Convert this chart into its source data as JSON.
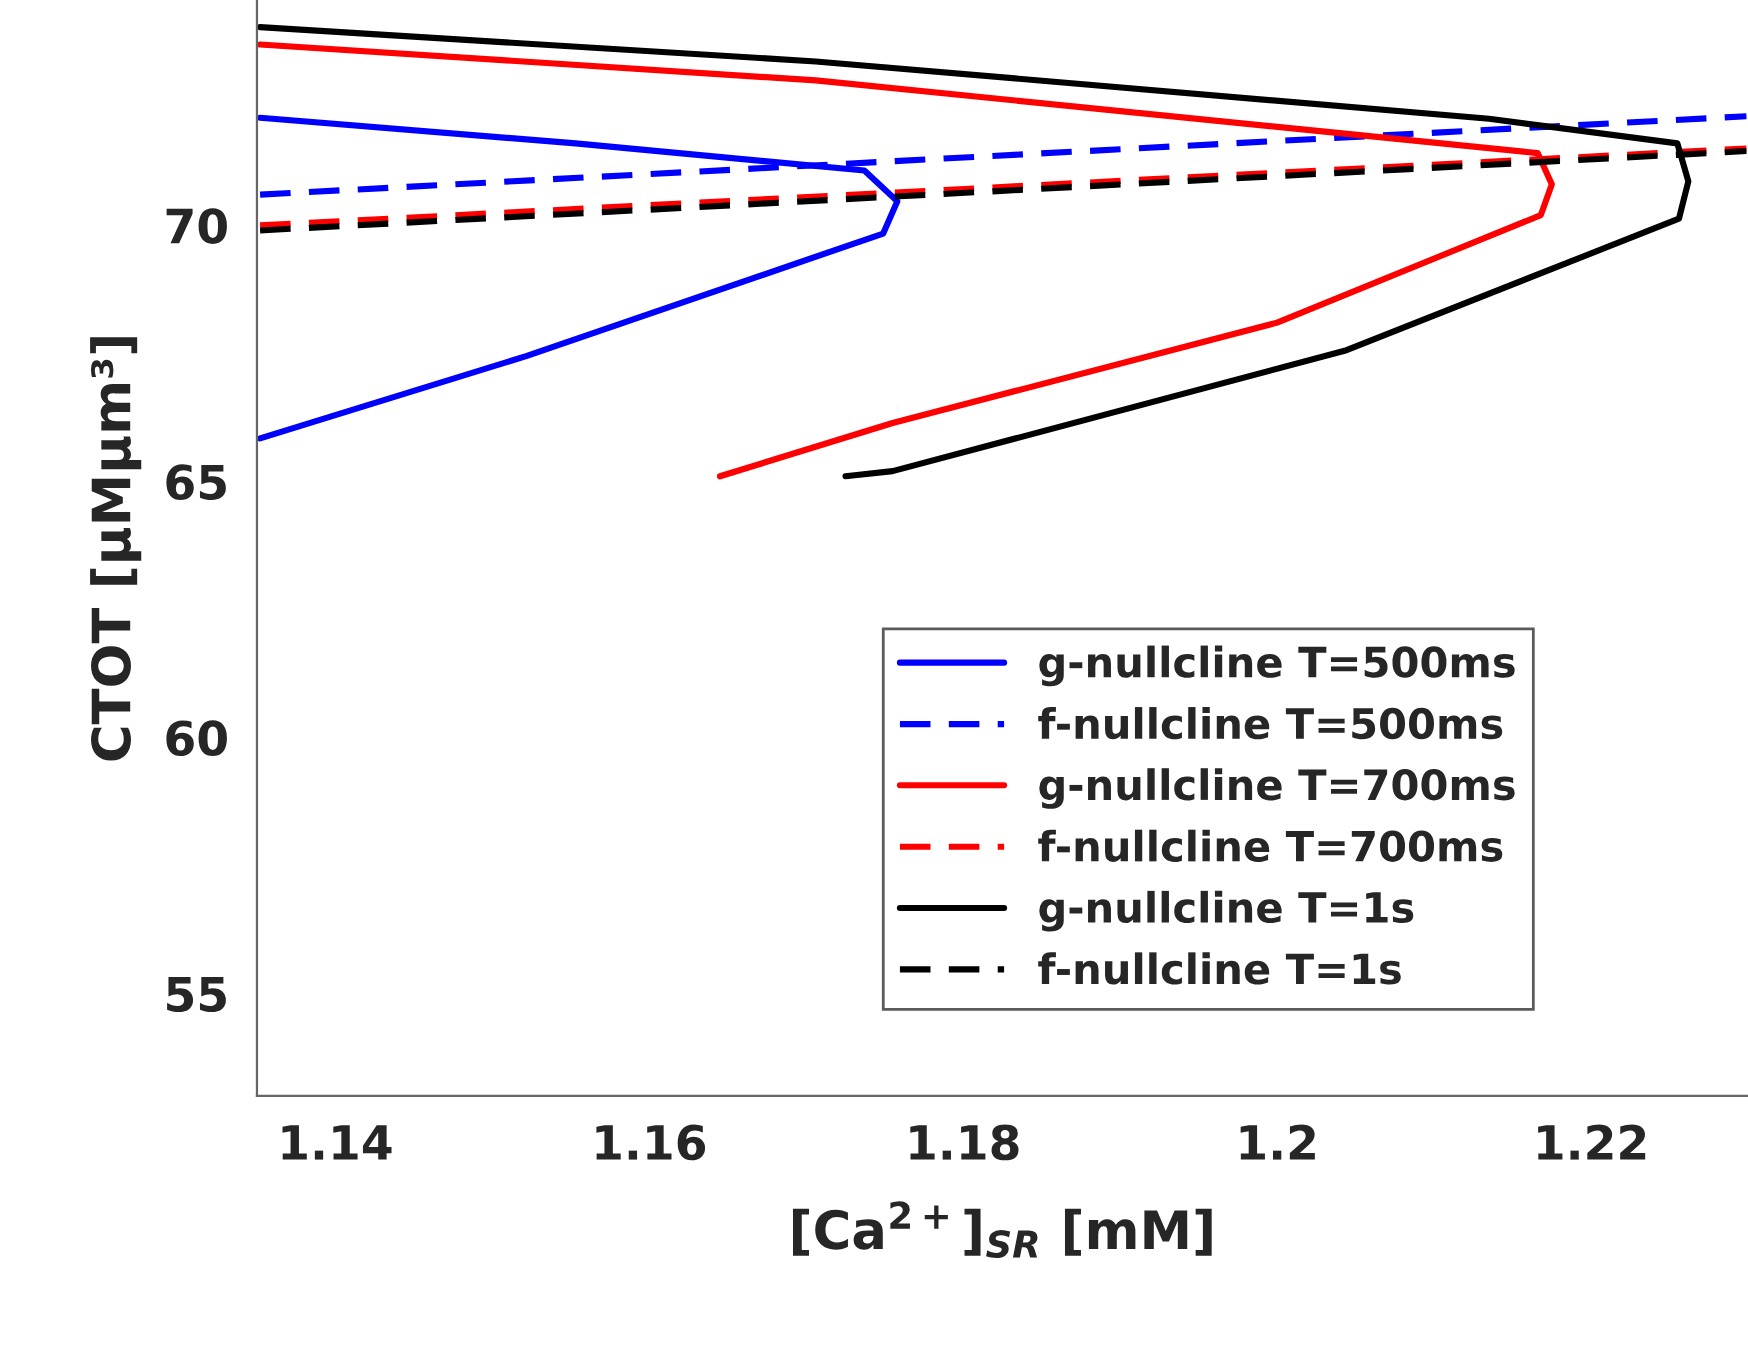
{
  "chart_data": {
    "type": "line",
    "xlabel": "[Ca$^{2+}$]$_{SR}$ [mM]",
    "ylabel": "CTOT [μMμm³]",
    "xlim": [
      1.135,
      1.23
    ],
    "ylim": [
      53,
      74.4
    ],
    "xticks": [
      1.14,
      1.16,
      1.18,
      {
        "value": 1.2,
        "label": "1.2"
      },
      1.22
    ],
    "yticks": [
      55,
      60,
      65,
      70
    ],
    "legend": "bottom right",
    "grid": false,
    "series": [
      {
        "name": "g-nullcline T=500ms",
        "color": "#0000ff",
        "line_style": "solid",
        "x": [
          1.1352,
          1.1553,
          1.1737,
          1.1758,
          1.1749,
          1.1522,
          1.1352
        ],
        "values": [
          72.1,
          71.6,
          71.07,
          70.47,
          69.84,
          67.45,
          65.84
        ]
      },
      {
        "name": "f-nullcline T=500ms",
        "color": "#0000ff",
        "line_style": "dashed",
        "x": [
          1.1352,
          1.2299
        ],
        "values": [
          70.6,
          72.13
        ]
      },
      {
        "name": "g-nullcline T=700ms",
        "color": "#ff0000",
        "line_style": "solid",
        "x": [
          1.1352,
          1.1706,
          1.2043,
          1.2166,
          1.2175,
          1.2168,
          1.2,
          1.1755,
          1.1645
        ],
        "values": [
          73.53,
          72.83,
          71.79,
          71.41,
          70.8,
          70.2,
          68.1,
          66.14,
          65.1
        ]
      },
      {
        "name": "f-nullcline T=700ms",
        "color": "#ff0000",
        "line_style": "dashed",
        "x": [
          1.1352,
          1.2299
        ],
        "values": [
          70.0,
          71.5
        ]
      },
      {
        "name": "g-nullcline T=1s",
        "color": "#000000",
        "line_style": "solid",
        "x": [
          1.1352,
          1.1706,
          1.2135,
          1.2255,
          1.2262,
          1.2256,
          1.2043,
          1.1755,
          1.1725
        ],
        "values": [
          73.87,
          73.2,
          72.08,
          71.6,
          70.86,
          70.13,
          67.55,
          65.2,
          65.1
        ]
      },
      {
        "name": "f-nullcline T=1s",
        "color": "#000000",
        "line_style": "dashed",
        "x": [
          1.1352,
          1.2299
        ],
        "values": [
          69.9,
          71.45
        ]
      }
    ]
  }
}
